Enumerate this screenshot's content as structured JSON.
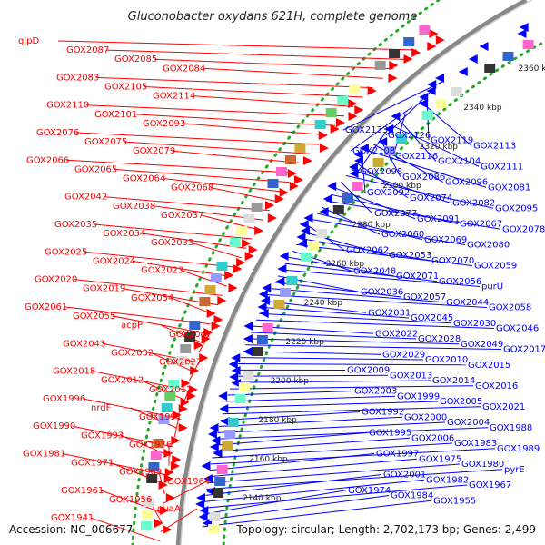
{
  "title": "Gluconobacter oxydans 621H, complete genome",
  "footer": {
    "accession": "Accession: NC_006677",
    "topology": "Topology: circular; Length: 2,702,173 bp; Genes: 2,499"
  },
  "colors": {
    "left_strand": "#ff0000",
    "right_strand": "#0000ff",
    "backbone": "#888888",
    "dotted_ring": "#22aa22"
  },
  "kbp_ticks": [
    "2360 kbp",
    "2340 kbp",
    "2320 kbp",
    "2300 kbp",
    "2280 kbp",
    "2260 kbp",
    "2240 kbp",
    "2220 kbp",
    "2200 kbp",
    "2180 kbp",
    "2160 kbp",
    "2140 kbp"
  ],
  "left_labels": [
    "glpD",
    "GOX2087",
    "GOX2085",
    "GOX2084",
    "GOX2083",
    "GOX2105",
    "GOX2114",
    "GOX2110",
    "GOX2101",
    "GOX2093",
    "GOX2076",
    "GOX2075",
    "GOX2079",
    "GOX2066",
    "GOX2065",
    "GOX2064",
    "GOX2068",
    "GOX2042",
    "GOX2038",
    "GOX2037",
    "GOX2035",
    "GOX2034",
    "GOX2033",
    "GOX2025",
    "GOX2024",
    "GOX2023",
    "GOX2020",
    "GOX2019",
    "GOX2054",
    "GOX2061",
    "GOX2055",
    "acpP",
    "GOX2047",
    "GOX2043",
    "GOX2032",
    "GOX2027",
    "GOX2018",
    "GOX2012",
    "GOX2011",
    "GOX1996",
    "nrdF",
    "GOX1991",
    "GOX1990",
    "GOX1993",
    "GOX1976",
    "GOX1981",
    "GOX1971",
    "GOX1969",
    "GOX1964",
    "GOX1961",
    "GOX1956",
    "guaA",
    "GOX1941"
  ],
  "right_labels": [
    "GOX2133",
    "GOX2126",
    "GOX2119",
    "GOX2113",
    "GOX2108",
    "GOX2116",
    "GOX2104",
    "GOX2111",
    "GOX2098",
    "GOX2086",
    "GOX2096",
    "GOX2081",
    "GOX2092",
    "GOX2074",
    "GOX2082",
    "GOX2095",
    "GOX2077",
    "GOX2091",
    "GOX2067",
    "GOX2078",
    "GOX2060",
    "GOX2069",
    "GOX2080",
    "GOX2062",
    "GOX2053",
    "GOX2070",
    "GOX2059",
    "GOX2048",
    "GOX2071",
    "GOX2056",
    "purU",
    "GOX2036",
    "GOX2057",
    "GOX2044",
    "GOX2058",
    "GOX2031",
    "GOX2045",
    "GOX2030",
    "GOX2046",
    "GOX2022",
    "GOX2028",
    "GOX2049",
    "GOX2017",
    "GOX2029",
    "GOX2010",
    "GOX2015",
    "GOX2009",
    "GOX2013",
    "GOX2014",
    "GOX2016",
    "GOX2003",
    "GOX1999",
    "GOX2005",
    "GOX2021",
    "GOX1992",
    "GOX2000",
    "GOX2004",
    "GOX1988",
    "GOX1995",
    "GOX2006",
    "GOX1983",
    "GOX1989",
    "GOX1997",
    "GOX1975",
    "GOX1980",
    "pyrE",
    "GOX2001",
    "GOX1982",
    "GOX1967",
    "GOX1974",
    "GOX1984",
    "GOX1955"
  ]
}
